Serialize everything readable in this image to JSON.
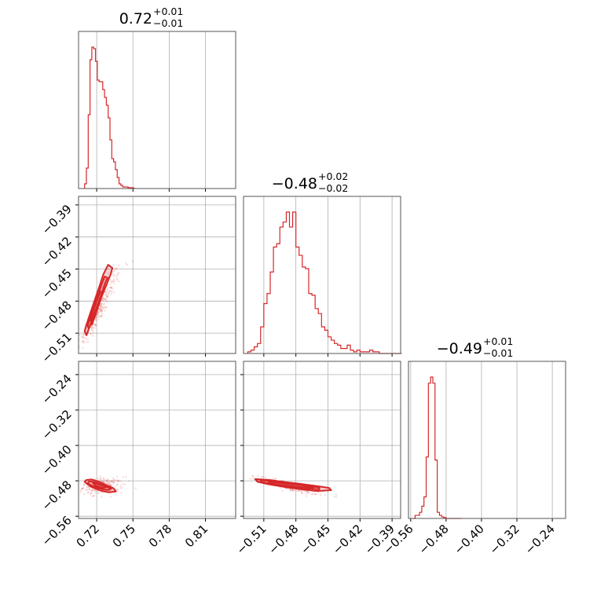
{
  "chart_data": {
    "type": "corner",
    "color": "#d62728",
    "grid": true,
    "titles": [
      {
        "value": "0.72",
        "plus": "+0.01",
        "minus": "−0.01"
      },
      {
        "value": "−0.48",
        "plus": "+0.02",
        "minus": "−0.02"
      },
      {
        "value": "−0.49",
        "plus": "+0.01",
        "minus": "−0.01"
      }
    ],
    "params": [
      {
        "range": [
          0.705,
          0.835
        ],
        "ticks": [
          0.72,
          0.75,
          0.78,
          0.81
        ],
        "tick_labels": [
          "0.72",
          "0.75",
          "0.78",
          "0.81"
        ]
      },
      {
        "range": [
          -0.529,
          -0.382
        ],
        "ticks": [
          -0.51,
          -0.48,
          -0.45,
          -0.42,
          -0.39
        ],
        "tick_labels": [
          "−0.51",
          "−0.48",
          "−0.45",
          "−0.42",
          "−0.39"
        ]
      },
      {
        "range": [
          -0.565,
          -0.21
        ],
        "ticks": [
          -0.56,
          -0.48,
          -0.4,
          -0.32,
          -0.24
        ],
        "tick_labels": [
          "−0.56",
          "−0.48",
          "−0.40",
          "−0.32",
          "−0.24"
        ]
      }
    ],
    "histograms": [
      {
        "bins": [
          0.71,
          0.7115,
          0.713,
          0.7145,
          0.716,
          0.7175,
          0.719,
          0.7205,
          0.722,
          0.7235,
          0.725,
          0.7265,
          0.728,
          0.7295,
          0.731,
          0.7325,
          0.734,
          0.7355,
          0.737,
          0.7385,
          0.74,
          0.7415,
          0.743,
          0.7445,
          0.746,
          0.7475,
          0.749,
          0.7505
        ],
        "counts": [
          0.03,
          0.13,
          0.47,
          0.82,
          0.9,
          0.89,
          0.81,
          0.69,
          0.68,
          0.68,
          0.63,
          0.58,
          0.53,
          0.45,
          0.31,
          0.19,
          0.17,
          0.12,
          0.07,
          0.03,
          0.02,
          0.01,
          0.01,
          0.01,
          0.005,
          0.005,
          0.005,
          0.0
        ]
      },
      {
        "bins": [
          -0.525,
          -0.522,
          -0.519,
          -0.516,
          -0.513,
          -0.51,
          -0.507,
          -0.504,
          -0.501,
          -0.498,
          -0.495,
          -0.492,
          -0.489,
          -0.486,
          -0.483,
          -0.48,
          -0.477,
          -0.474,
          -0.471,
          -0.468,
          -0.465,
          -0.462,
          -0.459,
          -0.456,
          -0.453,
          -0.45,
          -0.447,
          -0.444,
          -0.441,
          -0.438,
          -0.435,
          -0.432,
          -0.429,
          -0.426,
          -0.423,
          -0.42,
          -0.417,
          -0.414,
          -0.411,
          -0.408,
          -0.405,
          -0.402,
          -0.399,
          -0.396,
          -0.393,
          -0.39,
          -0.387,
          -0.384
        ],
        "counts": [
          0.01,
          0.02,
          0.04,
          0.06,
          0.16,
          0.3,
          0.36,
          0.49,
          0.64,
          0.66,
          0.76,
          0.79,
          0.85,
          0.76,
          0.85,
          0.64,
          0.59,
          0.52,
          0.51,
          0.36,
          0.35,
          0.27,
          0.24,
          0.16,
          0.14,
          0.1,
          0.08,
          0.06,
          0.05,
          0.03,
          0.03,
          0.05,
          0.02,
          0.01,
          0.02,
          0.01,
          0.01,
          0.01,
          0.02,
          0.01,
          0.01,
          0.0,
          0.0,
          0.0,
          0.0,
          0.0,
          0.0,
          0.0
        ]
      },
      {
        "bins": [
          -0.555,
          -0.55,
          -0.545,
          -0.54,
          -0.535,
          -0.53,
          -0.525,
          -0.52,
          -0.515,
          -0.51,
          -0.505,
          -0.5,
          -0.495,
          -0.49,
          -0.485,
          -0.48,
          -0.475,
          -0.47,
          -0.465,
          -0.46,
          -0.455,
          -0.45
        ],
        "counts": [
          0.0,
          0.02,
          0.02,
          0.04,
          0.08,
          0.14,
          0.4,
          0.88,
          0.92,
          0.88,
          0.38,
          0.04,
          0.02,
          0.01,
          0.005,
          0.0,
          0.0,
          0.0,
          0.0,
          0.0,
          0.0,
          0.0
        ]
      }
    ],
    "scatter": [
      {
        "x_param": 0,
        "y_param": 1,
        "center": [
          0.722,
          -0.487
        ],
        "corr": 0.93,
        "contours": [
          [
            [
              0.7115,
              -0.512
            ],
            [
              0.7135,
              -0.506
            ],
            [
              0.7165,
              -0.497
            ],
            [
              0.72,
              -0.487
            ],
            [
              0.724,
              -0.476
            ],
            [
              0.728,
              -0.465
            ],
            [
              0.7315,
              -0.455
            ],
            [
              0.733,
              -0.449
            ],
            [
              0.7295,
              -0.446
            ],
            [
              0.7255,
              -0.455
            ],
            [
              0.722,
              -0.467
            ],
            [
              0.7175,
              -0.482
            ],
            [
              0.713,
              -0.497
            ],
            [
              0.71,
              -0.508
            ]
          ],
          [
            [
              0.7135,
              -0.506
            ],
            [
              0.716,
              -0.498
            ],
            [
              0.7195,
              -0.487
            ],
            [
              0.7235,
              -0.475
            ],
            [
              0.727,
              -0.463
            ],
            [
              0.729,
              -0.458
            ],
            [
              0.7265,
              -0.457
            ],
            [
              0.723,
              -0.468
            ],
            [
              0.719,
              -0.481
            ],
            [
              0.715,
              -0.494
            ],
            [
              0.7125,
              -0.503
            ]
          ],
          [
            [
              0.716,
              -0.502
            ],
            [
              0.719,
              -0.493
            ],
            [
              0.7225,
              -0.481
            ],
            [
              0.725,
              -0.472
            ],
            [
              0.723,
              -0.471
            ],
            [
              0.72,
              -0.48
            ],
            [
              0.717,
              -0.49
            ],
            [
              0.715,
              -0.498
            ]
          ]
        ]
      },
      {
        "x_param": 0,
        "y_param": 2,
        "center": [
          0.724,
          -0.492
        ],
        "corr": 0.2,
        "contours": [
          [
            [
              0.7115,
              -0.478
            ],
            [
              0.716,
              -0.477
            ],
            [
              0.722,
              -0.482
            ],
            [
              0.729,
              -0.491
            ],
            [
              0.734,
              -0.497
            ],
            [
              0.736,
              -0.504
            ],
            [
              0.73,
              -0.506
            ],
            [
              0.723,
              -0.502
            ],
            [
              0.716,
              -0.494
            ],
            [
              0.712,
              -0.487
            ],
            [
              0.71,
              -0.482
            ]
          ],
          [
            [
              0.714,
              -0.481
            ],
            [
              0.72,
              -0.484
            ],
            [
              0.727,
              -0.492
            ],
            [
              0.732,
              -0.498
            ],
            [
              0.729,
              -0.501
            ],
            [
              0.722,
              -0.497
            ],
            [
              0.715,
              -0.49
            ],
            [
              0.7125,
              -0.485
            ]
          ],
          [
            [
              0.717,
              -0.485
            ],
            [
              0.723,
              -0.489
            ],
            [
              0.728,
              -0.494
            ],
            [
              0.725,
              -0.496
            ],
            [
              0.719,
              -0.491
            ]
          ]
        ]
      },
      {
        "x_param": 1,
        "y_param": 2,
        "center": [
          -0.487,
          -0.492
        ],
        "corr": -0.9,
        "contours": [
          [
            [
              -0.518,
              -0.476
            ],
            [
              -0.505,
              -0.478
            ],
            [
              -0.49,
              -0.483
            ],
            [
              -0.475,
              -0.487
            ],
            [
              -0.46,
              -0.492
            ],
            [
              -0.449,
              -0.496
            ],
            [
              -0.447,
              -0.501
            ],
            [
              -0.46,
              -0.503
            ],
            [
              -0.475,
              -0.499
            ],
            [
              -0.49,
              -0.494
            ],
            [
              -0.505,
              -0.488
            ],
            [
              -0.516,
              -0.482
            ]
          ],
          [
            [
              -0.513,
              -0.479
            ],
            [
              -0.5,
              -0.481
            ],
            [
              -0.487,
              -0.486
            ],
            [
              -0.472,
              -0.49
            ],
            [
              -0.458,
              -0.495
            ],
            [
              -0.458,
              -0.499
            ],
            [
              -0.472,
              -0.497
            ],
            [
              -0.487,
              -0.492
            ],
            [
              -0.502,
              -0.487
            ],
            [
              -0.512,
              -0.483
            ]
          ],
          [
            [
              -0.505,
              -0.482
            ],
            [
              -0.49,
              -0.486
            ],
            [
              -0.475,
              -0.49
            ],
            [
              -0.463,
              -0.494
            ],
            [
              -0.466,
              -0.496
            ],
            [
              -0.48,
              -0.493
            ],
            [
              -0.495,
              -0.489
            ],
            [
              -0.506,
              -0.485
            ]
          ]
        ]
      }
    ]
  }
}
